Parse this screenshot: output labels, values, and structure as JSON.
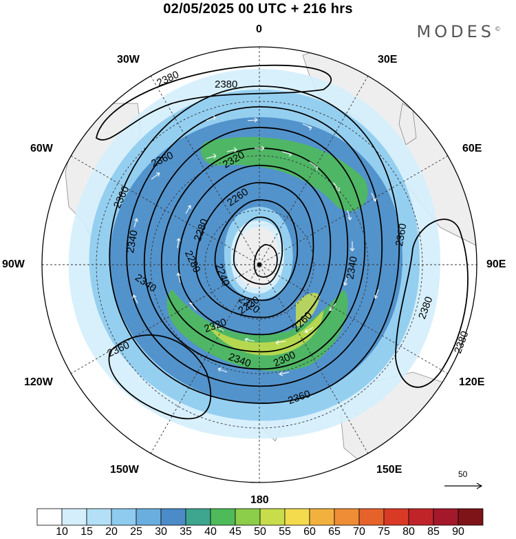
{
  "header": {
    "title": "02/05/2025  00 UTC  + 216 hrs",
    "brand": "MODES",
    "brand_mark": "©"
  },
  "longitude_labels": {
    "lon_0": "0",
    "lon_30e": "30E",
    "lon_60e": "60E",
    "lon_90e": "90E",
    "lon_120e": "120E",
    "lon_150e": "150E",
    "lon_180": "180",
    "lon_150w": "150W",
    "lon_120w": "120W",
    "lon_90w": "90W",
    "lon_60w": "60W",
    "lon_30w": "30W"
  },
  "contour_labels": {
    "c2380_a": "2380",
    "c2380_b": "2380",
    "c2380_c": "2380",
    "c2380_d": "2380",
    "c2360_a": "2360",
    "c2360_b": "2360",
    "c2360_c": "2360",
    "c2360_d": "2360",
    "c2360_e": "2360",
    "c2340_a": "2340",
    "c2340_b": "2340",
    "c2340_c": "2340",
    "c2340_d": "2340",
    "c2320_a": "2320",
    "c2320_b": "2320",
    "c2320_c": "2320",
    "c2300_a": "2300",
    "c2280_a": "2280",
    "c2280_b": "2280",
    "c2260_a": "2260",
    "c2260_b": "2260",
    "c2240_a": "2240",
    "c2220_a": "2220"
  },
  "colorbar": {
    "labels": [
      "10",
      "15",
      "20",
      "25",
      "30",
      "35",
      "40",
      "45",
      "50",
      "55",
      "60",
      "65",
      "70",
      "75",
      "80",
      "85",
      "90"
    ],
    "colors": [
      "#ffffff",
      "#d4eefc",
      "#b3e0f7",
      "#8ecbee",
      "#6aaee0",
      "#4b8cc8",
      "#3ea58e",
      "#4fba5a",
      "#8ccd4a",
      "#c8dd4c",
      "#f3db4d",
      "#f2b13f",
      "#ee8d35",
      "#e6622b",
      "#d93a26",
      "#c0242a",
      "#a3182a",
      "#7e1318"
    ]
  },
  "reference_vector": {
    "label": "50"
  },
  "fill_colors": {
    "land": "#eeeeee",
    "coast": "#888888",
    "grid": "#333333"
  }
}
